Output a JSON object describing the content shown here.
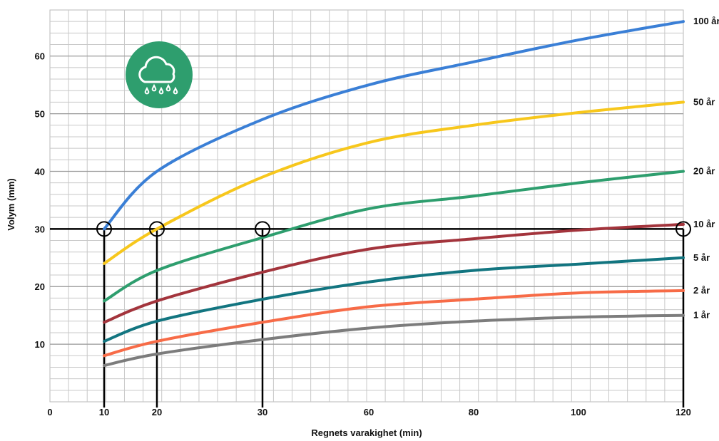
{
  "chart_data": {
    "type": "line",
    "title": "",
    "xlabel": "Regnets varakighet (min)",
    "ylabel": "Volym (mm)",
    "x_ticks": [
      {
        "label": "0",
        "value": 0
      },
      {
        "label": "10",
        "value": 10
      },
      {
        "label": "20",
        "value": 20
      },
      {
        "label": "30",
        "value": 30
      },
      {
        "label": "60",
        "value": 60
      },
      {
        "label": "80",
        "value": 80
      },
      {
        "label": "100",
        "value": 100
      },
      {
        "label": "120",
        "value": 120
      }
    ],
    "y_ticks": [
      10,
      20,
      30,
      40,
      50,
      60
    ],
    "xlim": [
      0,
      120
    ],
    "ylim": [
      0,
      70
    ],
    "grid": true,
    "reference_line_y": 30,
    "reference_markers": [
      {
        "x": 10,
        "y": 30
      },
      {
        "x": 20,
        "y": 30
      },
      {
        "x": 30,
        "y": 30
      },
      {
        "x": 120,
        "y": 30
      }
    ],
    "vertical_guides": [
      10,
      20,
      30,
      120
    ],
    "series": [
      {
        "name": "100 år",
        "color": "#3a7fd6",
        "x": [
          10,
          20,
          30,
          60,
          80,
          100,
          120
        ],
        "y": [
          30,
          40,
          49,
          55,
          59,
          62.8,
          66
        ]
      },
      {
        "name": "50 år",
        "color": "#f7c71c",
        "x": [
          10,
          20,
          30,
          60,
          80,
          100,
          120
        ],
        "y": [
          24,
          30,
          39,
          45,
          48,
          50.2,
          52
        ]
      },
      {
        "name": "20 år",
        "color": "#2e9e6e",
        "x": [
          10,
          20,
          30,
          60,
          80,
          100,
          120
        ],
        "y": [
          17.5,
          22.8,
          28.5,
          33.5,
          35.7,
          38,
          40
        ]
      },
      {
        "name": "10 år",
        "color": "#a3343c",
        "x": [
          10,
          20,
          30,
          60,
          80,
          100,
          120
        ],
        "y": [
          13.8,
          17.5,
          22.5,
          26.5,
          28.3,
          29.8,
          30.8
        ]
      },
      {
        "name": "5 år",
        "color": "#127580",
        "x": [
          10,
          20,
          30,
          60,
          80,
          100,
          120
        ],
        "y": [
          10.5,
          14,
          17.8,
          20.8,
          22.8,
          23.9,
          25
        ]
      },
      {
        "name": "2 år",
        "color": "#f76b47",
        "x": [
          10,
          20,
          30,
          60,
          80,
          100,
          120
        ],
        "y": [
          8,
          10.5,
          13.8,
          16.5,
          17.8,
          18.9,
          19.3
        ]
      },
      {
        "name": "1 år",
        "color": "#7c7c7c",
        "x": [
          10,
          20,
          30,
          60,
          80,
          100,
          120
        ],
        "y": [
          6.3,
          8.3,
          10.8,
          12.8,
          14,
          14.7,
          15
        ]
      }
    ]
  },
  "icon": {
    "name": "rain-cloud-icon",
    "background": "#2e9e6e",
    "foreground": "#ffffff"
  }
}
